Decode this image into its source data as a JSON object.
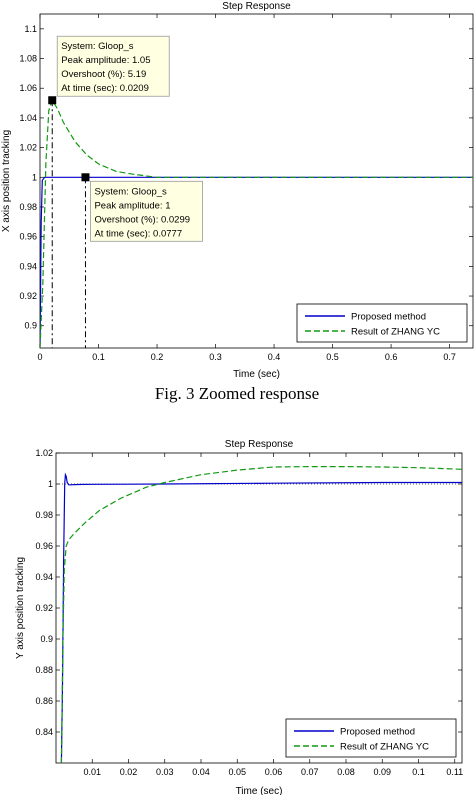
{
  "caption": "Fig. 3   Zoomed response",
  "chart_data": [
    {
      "type": "line",
      "title": "Step Response",
      "xlabel": "Time (sec)",
      "ylabel": "X axis position tracking",
      "xlim": [
        0,
        0.74
      ],
      "ylim": [
        0.885,
        1.11
      ],
      "xticks": [
        0,
        0.1,
        0.2,
        0.3,
        0.4,
        0.5,
        0.6,
        0.7
      ],
      "xtick_labels": [
        "0",
        "0.1",
        "0.2",
        "0.3",
        "0.4",
        "0.5",
        "0.6",
        "0.7"
      ],
      "yticks": [
        0.9,
        0.92,
        0.94,
        0.96,
        0.98,
        1,
        1.02,
        1.04,
        1.06,
        1.08,
        1.1
      ],
      "ytick_labels": [
        "0.9",
        "0.92",
        "0.94",
        "0.96",
        "0.98",
        "1",
        "1.02",
        "1.04",
        "1.06",
        "1.08",
        "1.1"
      ],
      "grid": false,
      "legend_position": "bottom-right",
      "series": [
        {
          "name": "Proposed method",
          "color": "#0000cc",
          "style": "solid",
          "x": [
            0,
            0.002,
            0.004,
            0.008,
            0.015,
            0.03,
            0.0777,
            0.15,
            0.3,
            0.5,
            0.74
          ],
          "y": [
            0.885,
            0.97,
            0.998,
            1.0,
            1.0,
            1.0,
            1.0,
            1.0,
            1.0,
            1.0,
            1.0
          ]
        },
        {
          "name": "Result of ZHANG YC",
          "color": "#119911",
          "style": "dashed",
          "x": [
            0,
            0.005,
            0.01,
            0.015,
            0.0209,
            0.03,
            0.04,
            0.06,
            0.08,
            0.1,
            0.13,
            0.16,
            0.2,
            0.25,
            0.4,
            0.74
          ],
          "y": [
            0.885,
            0.93,
            1.01,
            1.045,
            1.0519,
            1.046,
            1.037,
            1.024,
            1.015,
            1.009,
            1.004,
            1.002,
            1.0,
            1.0,
            1.0,
            1.0
          ]
        }
      ],
      "datatips": [
        {
          "x": 0.0209,
          "y": 1.0519,
          "lines": [
            "System: Gloop_s",
            "Peak amplitude: 1.05",
            "Overshoot (%): 5.19",
            "At time (sec): 0.0209"
          ],
          "box": "upper-right"
        },
        {
          "x": 0.0777,
          "y": 1.0,
          "lines": [
            "System: Gloop_s",
            "Peak amplitude: 1",
            "Overshoot (%): 0.0299",
            "At time (sec): 0.0777"
          ],
          "box": "lower-right"
        }
      ]
    },
    {
      "type": "line",
      "title": "Step Response",
      "xlabel": "Time (sec)",
      "ylabel": "Y axis position tracking",
      "xlim": [
        0,
        0.112
      ],
      "ylim": [
        0.82,
        1.02
      ],
      "xticks": [
        0.01,
        0.02,
        0.03,
        0.04,
        0.05,
        0.06,
        0.07,
        0.08,
        0.09,
        0.1,
        0.11
      ],
      "xtick_labels": [
        "0.01",
        "0.02",
        "0.03",
        "0.04",
        "0.05",
        "0.06",
        "0.07",
        "0.08",
        "0.09",
        "0.1",
        "0.11"
      ],
      "yticks": [
        0.84,
        0.86,
        0.88,
        0.9,
        0.92,
        0.94,
        0.96,
        0.98,
        1,
        1.02
      ],
      "ytick_labels": [
        "0.84",
        "0.86",
        "0.88",
        "0.9",
        "0.92",
        "0.94",
        "0.96",
        "0.98",
        "1",
        "1.02"
      ],
      "grid": false,
      "legend_position": "bottom-right",
      "reference_line": 1.0,
      "series": [
        {
          "name": "Proposed method",
          "color": "#0000cc",
          "style": "solid",
          "x": [
            0.0015,
            0.0018,
            0.0021,
            0.0024,
            0.0026,
            0.0028,
            0.0031,
            0.0035,
            0.004,
            0.006,
            0.01,
            0.02,
            0.03,
            0.06,
            0.09,
            0.112
          ],
          "y": [
            0.82,
            0.87,
            0.95,
            1.0,
            1.006,
            1.005,
            1.001,
            0.9995,
            0.9995,
            0.9997,
            0.9998,
            0.9999,
            1.0,
            1.0005,
            1.001,
            1.001
          ]
        },
        {
          "name": "Result of ZHANG YC",
          "color": "#119911",
          "style": "dashed",
          "x": [
            0.0015,
            0.0019,
            0.0023,
            0.0028,
            0.0035,
            0.005,
            0.008,
            0.012,
            0.018,
            0.025,
            0.03,
            0.04,
            0.05,
            0.06,
            0.07,
            0.08,
            0.09,
            0.1,
            0.112
          ],
          "y": [
            0.82,
            0.9,
            0.945,
            0.96,
            0.964,
            0.968,
            0.975,
            0.983,
            0.991,
            0.998,
            1.001,
            1.006,
            1.009,
            1.011,
            1.0112,
            1.0112,
            1.011,
            1.0105,
            1.0095
          ]
        }
      ]
    }
  ]
}
